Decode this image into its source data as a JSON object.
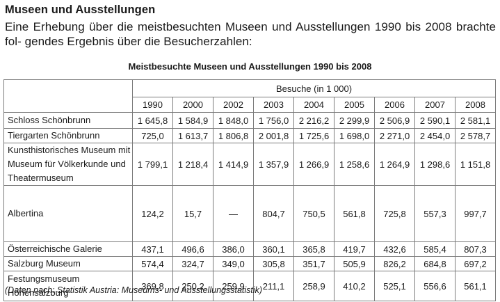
{
  "heading": "Museen und Ausstellungen",
  "intro": "Eine Erhebung über die meistbesuchten Museen und Ausstellungen 1990 bis 2008 brachte fol- gendes Ergebnis über die Besucherzahlen:",
  "table": {
    "title": "Meistbesuchte Museen und Ausstellungen 1990 bis 2008",
    "unit_label": "Besuche (in 1 000)",
    "years": [
      "1990",
      "2000",
      "2002",
      "2003",
      "2004",
      "2005",
      "2006",
      "2007",
      "2008"
    ],
    "rows": [
      {
        "name": "Schloss Schönbrunn",
        "values": [
          "1 645,8",
          "1 584,9",
          "1 848,0",
          "1 756,0",
          "2 216,2",
          "2 299,9",
          "2 506,9",
          "2 590,1",
          "2 581,1"
        ]
      },
      {
        "name": "Tiergarten Schönbrunn",
        "values": [
          "725,0",
          "1 613,7",
          "1 806,8",
          "2 001,8",
          "1 725,6",
          "1 698,0",
          "2 271,0",
          "2 454,0",
          "2 578,7"
        ]
      },
      {
        "name": "Kunsthistorisches Museum mit Museum für Völkerkunde und Theatermuseum",
        "values": [
          "1 799,1",
          "1 218,4",
          "1 414,9",
          "1 357,9",
          "1 266,9",
          "1 258,6",
          "1 264,9",
          "1 298,6",
          "1 151,8"
        ]
      },
      {
        "name": "Albertina",
        "values": [
          "124,2",
          "15,7",
          "—",
          "804,7",
          "750,5",
          "561,8",
          "725,8",
          "557,3",
          "997,7"
        ]
      },
      {
        "name": "Österreichische Galerie",
        "values": [
          "437,1",
          "496,6",
          "386,0",
          "360,1",
          "365,8",
          "419,7",
          "432,6",
          "585,4",
          "807,3"
        ]
      },
      {
        "name": "Salzburg Museum",
        "values": [
          "574,4",
          "324,7",
          "349,0",
          "305,8",
          "351,7",
          "505,9",
          "826,2",
          "684,8",
          "697,2"
        ]
      },
      {
        "name": "Festungsmuseum Hohensalzburg",
        "values": [
          "369,8",
          "250,2",
          "259,9",
          "211,1",
          "258,9",
          "410,2",
          "525,1",
          "556,6",
          "561,1"
        ]
      }
    ]
  },
  "source": "(Daten nach: Statistik Austria: Museums- und Ausstellungsstatistik)"
}
